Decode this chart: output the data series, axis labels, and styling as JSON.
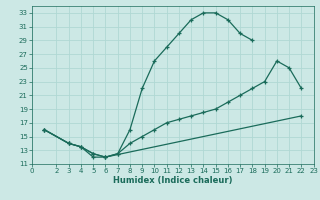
{
  "xlabel": "Humidex (Indice chaleur)",
  "bg_color": "#cce8e5",
  "grid_color": "#b0d8d4",
  "line_color": "#1a6b5a",
  "xlim": [
    0,
    23
  ],
  "ylim": [
    11,
    34
  ],
  "xticks": [
    0,
    2,
    3,
    4,
    5,
    6,
    7,
    8,
    9,
    10,
    11,
    12,
    13,
    14,
    15,
    16,
    17,
    18,
    19,
    20,
    21,
    22,
    23
  ],
  "yticks": [
    11,
    13,
    15,
    17,
    19,
    21,
    23,
    25,
    27,
    29,
    31,
    33
  ],
  "curve1_x": [
    1,
    3,
    4,
    5,
    6,
    7,
    8,
    9,
    10,
    11,
    12,
    13,
    14,
    15,
    16,
    17,
    18
  ],
  "curve1_y": [
    16,
    14,
    13.5,
    12.5,
    12,
    12.5,
    16,
    22,
    26,
    28,
    30,
    32,
    33,
    33,
    32,
    30,
    29
  ],
  "curve2_x": [
    1,
    3,
    4,
    5,
    6,
    7,
    8,
    9,
    10,
    11,
    12,
    13,
    14,
    15,
    16,
    17,
    18,
    19,
    20,
    21,
    22
  ],
  "curve2_y": [
    16,
    14,
    13.5,
    12,
    12,
    12.5,
    14,
    15,
    16,
    17,
    17.5,
    18,
    18.5,
    19,
    20,
    21,
    22,
    23,
    26,
    25,
    22
  ],
  "curve3_x": [
    1,
    3,
    4,
    5,
    6,
    22
  ],
  "curve3_y": [
    16,
    14,
    13.5,
    12.5,
    12,
    18
  ]
}
